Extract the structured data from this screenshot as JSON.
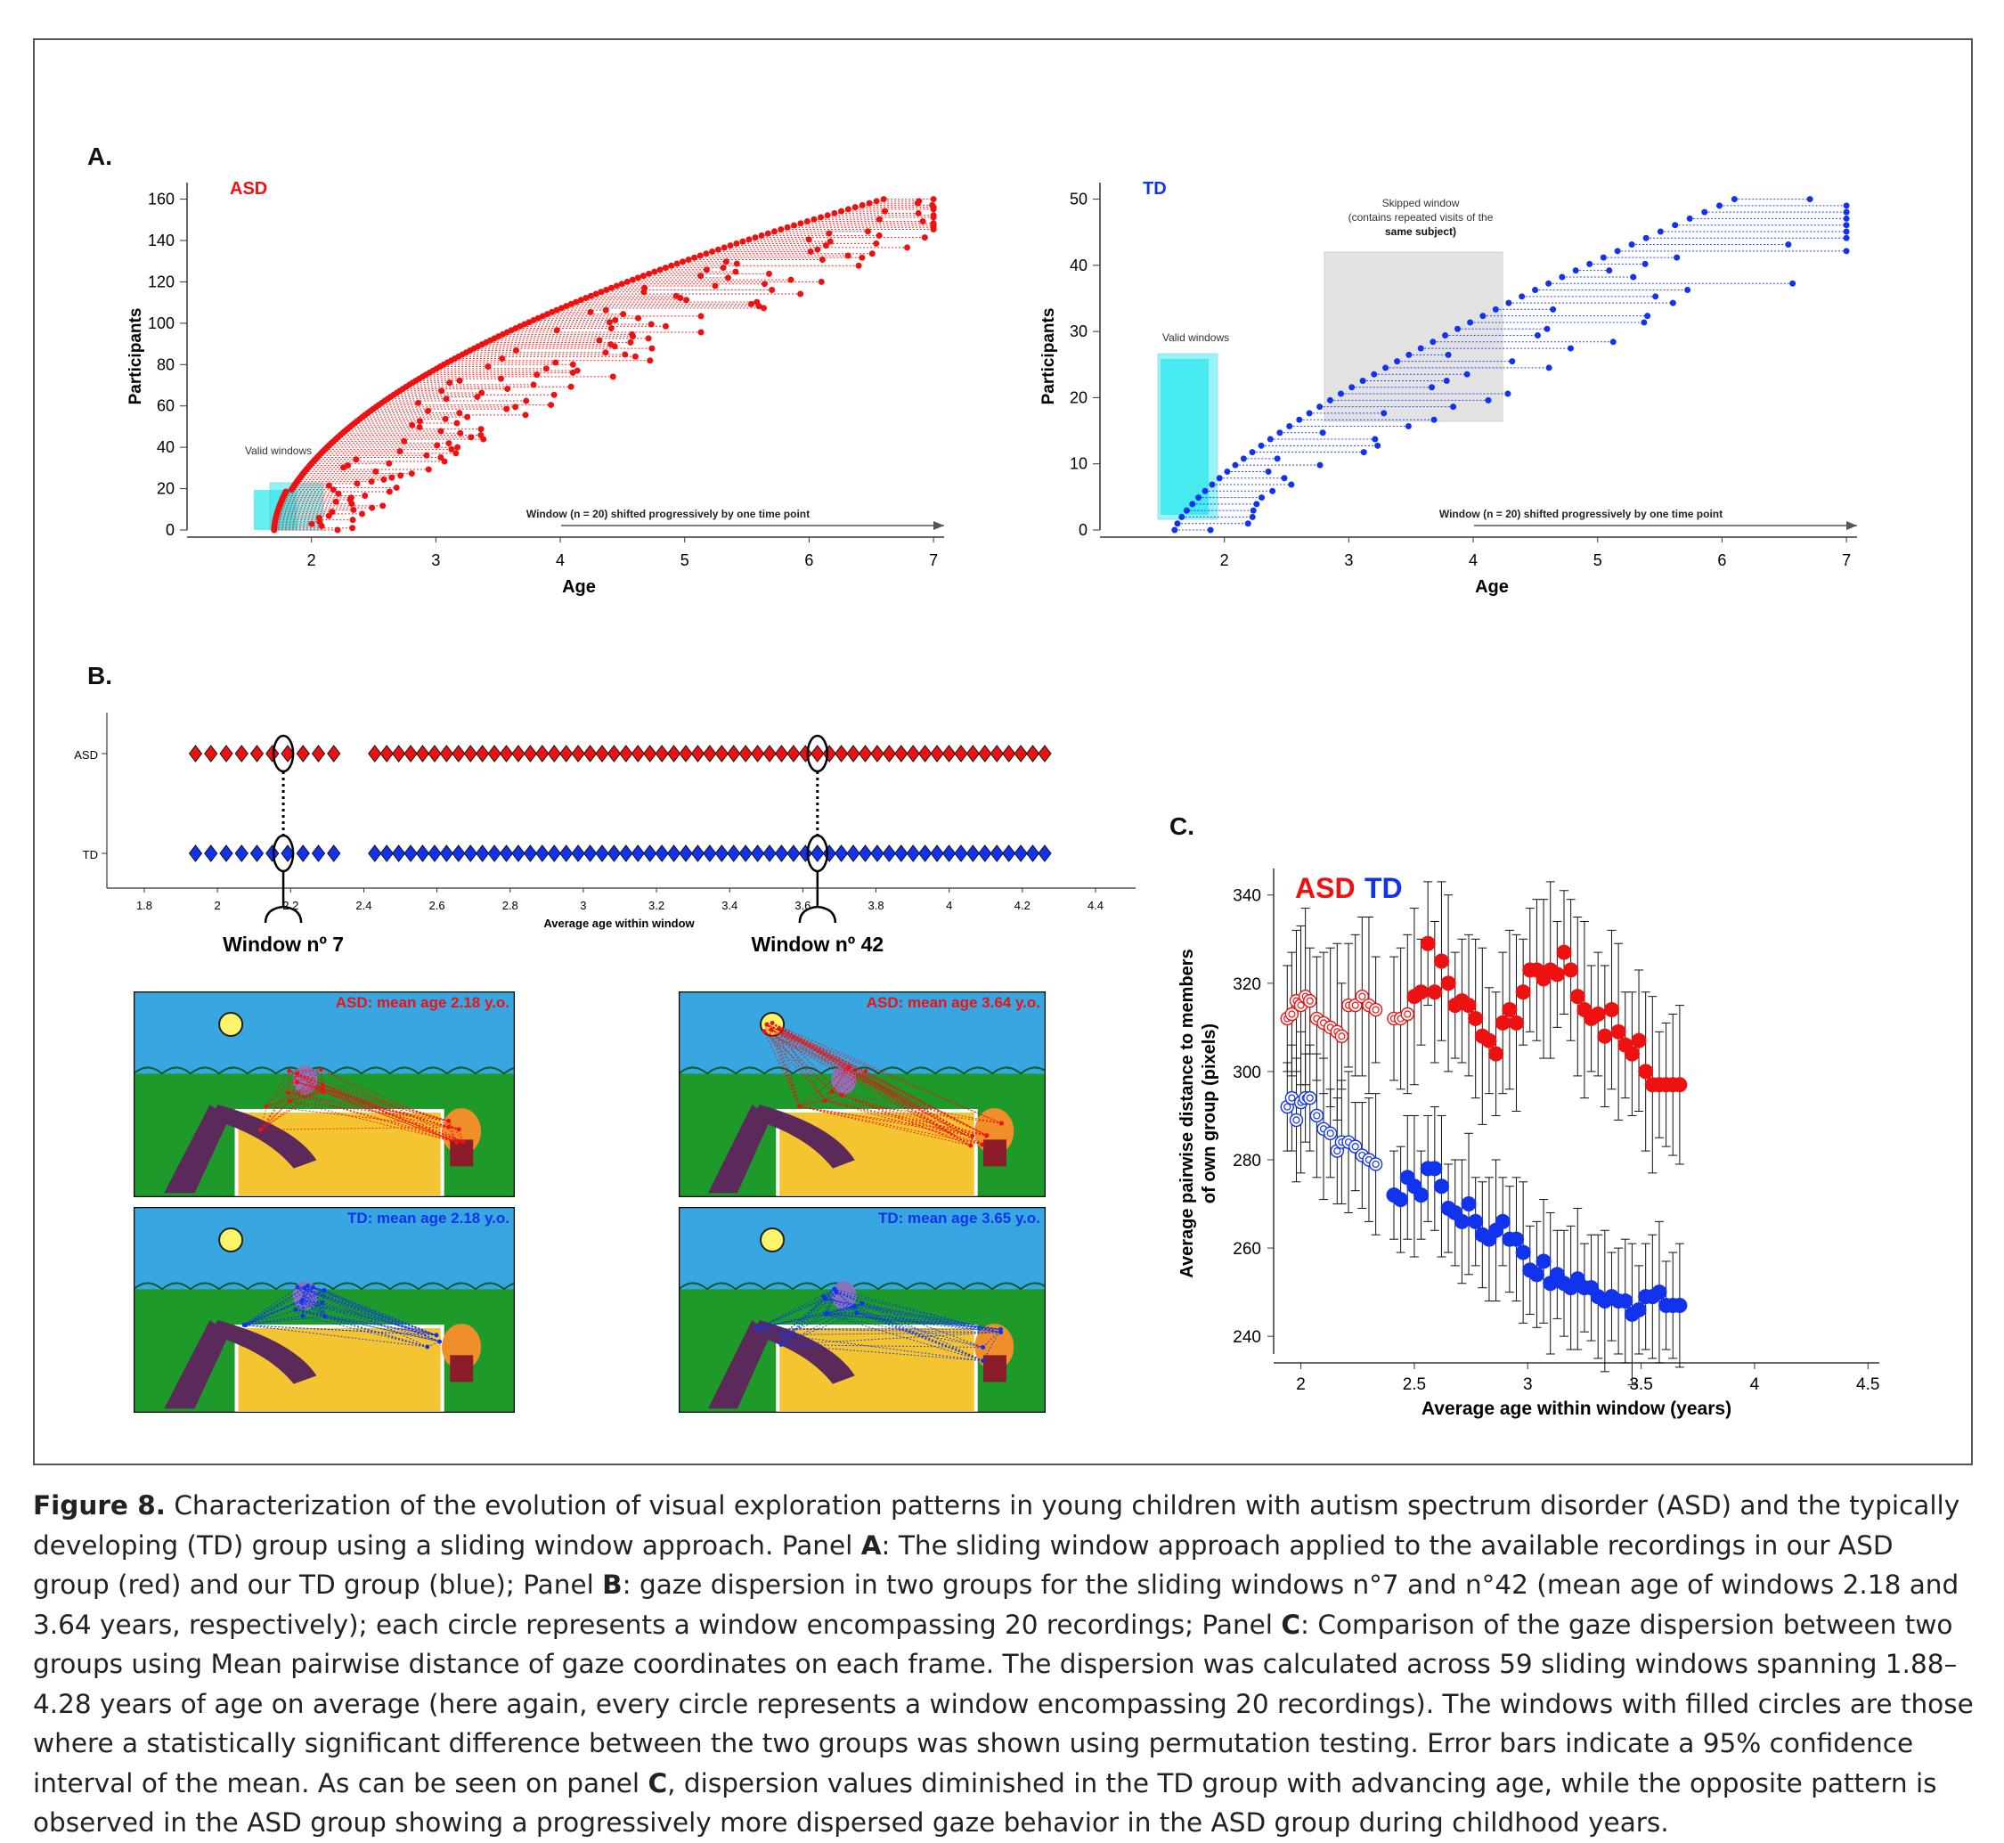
{
  "panel_labels": {
    "a": "A.",
    "b": "B.",
    "c": "C."
  },
  "panel_a": {
    "asd": {
      "group_label": "ASD",
      "valid_windows_label": "Valid windows",
      "arrow_label": "Window (n = 20) shifted progressively by one time point",
      "xlabel": "Age",
      "ylabel": "Participants",
      "yticks": [
        "0",
        "20",
        "40",
        "60",
        "80",
        "100",
        "120",
        "140",
        "160"
      ],
      "xticks": [
        "2",
        "3",
        "4",
        "5",
        "6",
        "7"
      ]
    },
    "td": {
      "group_label": "TD",
      "valid_windows_label": "Valid windows",
      "skipped_label_1": "Skipped window",
      "skipped_label_2": "(contains repeated visits of the",
      "skipped_label_3": "same subject)",
      "arrow_label": "Window (n = 20) shifted progressively by one time point",
      "xlabel": "Age",
      "ylabel": "Participants",
      "yticks": [
        "0",
        "10",
        "20",
        "30",
        "40",
        "50"
      ],
      "xticks": [
        "2",
        "3",
        "4",
        "5",
        "6",
        "7"
      ]
    }
  },
  "panel_b": {
    "row_labels": [
      "ASD",
      "TD"
    ],
    "xticks": [
      "1.8",
      "2",
      "2.2",
      "2.4",
      "2.6",
      "2.8",
      "3",
      "3.2",
      "3.4",
      "3.6",
      "3.8",
      "4",
      "4.2",
      "4.4"
    ],
    "xlabel": "Average age within window",
    "window_labels": [
      "Window nº 7",
      "Window nº 42"
    ],
    "image_captions": {
      "asd_7": "ASD: mean age 2.18 y.o.",
      "td_7": "TD: mean age 2.18 y.o.",
      "asd_42": "ASD: mean age 3.64 y.o.",
      "td_42": "TD: mean age 3.65 y.o."
    },
    "colors": {
      "asd": "#ee1111",
      "td": "#1133ee"
    }
  },
  "chart_data": {
    "type": "scatter",
    "title": "",
    "legend": [
      "ASD",
      "TD"
    ],
    "xlabel": "Average age within window (years)",
    "ylabel_1": "Average pairwise distance to members",
    "ylabel_2": "of own group (pixels)",
    "xlim": [
      1.88,
      4.55
    ],
    "ylim": [
      236,
      346
    ],
    "xticks": [
      "2",
      "2.5",
      "3",
      "3.5",
      "4",
      "4.5"
    ],
    "yticks": [
      "240",
      "260",
      "280",
      "300",
      "320",
      "340"
    ],
    "x": [
      1.94,
      1.96,
      1.98,
      2.0,
      2.02,
      2.04,
      2.07,
      2.1,
      2.13,
      2.16,
      2.18,
      2.21,
      2.24,
      2.27,
      2.3,
      2.33,
      2.41,
      2.44,
      2.47,
      2.5,
      2.53,
      2.56,
      2.59,
      2.62,
      2.65,
      2.68,
      2.71,
      2.74,
      2.77,
      2.8,
      2.83,
      2.86,
      2.89,
      2.92,
      2.95,
      2.98,
      3.01,
      3.04,
      3.07,
      3.1,
      3.13,
      3.16,
      3.19,
      3.22,
      3.25,
      3.28,
      3.31,
      3.34,
      3.37,
      3.4,
      3.43,
      3.46,
      3.49,
      3.52,
      3.55,
      3.58,
      3.61,
      3.64,
      3.67
    ],
    "series": [
      {
        "name": "ASD",
        "color": "#ee1111",
        "values": [
          312,
          313,
          316,
          315,
          317,
          316,
          312,
          311,
          310,
          309,
          308,
          315,
          315,
          317,
          315,
          314,
          312,
          312,
          313,
          317,
          318,
          329,
          318,
          325,
          320,
          315,
          316,
          315,
          312,
          308,
          307,
          304,
          311,
          314,
          311,
          318,
          323,
          323,
          321,
          323,
          322,
          327,
          323,
          317,
          314,
          312,
          313,
          308,
          314,
          309,
          306,
          304,
          307,
          300,
          297,
          297,
          297,
          297,
          297
        ],
        "filled": [
          false,
          false,
          false,
          false,
          false,
          false,
          false,
          false,
          false,
          false,
          false,
          false,
          false,
          false,
          false,
          false,
          false,
          false,
          false,
          true,
          true,
          true,
          true,
          true,
          true,
          true,
          true,
          true,
          true,
          true,
          true,
          true,
          true,
          true,
          true,
          true,
          true,
          true,
          true,
          true,
          true,
          true,
          true,
          true,
          true,
          true,
          true,
          true,
          true,
          true,
          true,
          true,
          true,
          true,
          true,
          true,
          true,
          true,
          true
        ]
      },
      {
        "name": "TD",
        "color": "#1133ee",
        "values": [
          292,
          294,
          289,
          293,
          294,
          294,
          290,
          287,
          286,
          282,
          284,
          284,
          283,
          281,
          280,
          279,
          272,
          271,
          276,
          274,
          272,
          278,
          278,
          274,
          269,
          268,
          266,
          270,
          266,
          263,
          262,
          264,
          266,
          262,
          262,
          259,
          255,
          254,
          257,
          252,
          254,
          252,
          251,
          253,
          251,
          251,
          249,
          248,
          249,
          248,
          248,
          245,
          246,
          249,
          249,
          250,
          247,
          247,
          247
        ],
        "filled": [
          false,
          false,
          false,
          false,
          false,
          false,
          false,
          false,
          false,
          false,
          false,
          false,
          false,
          false,
          false,
          false,
          true,
          true,
          true,
          true,
          true,
          true,
          true,
          true,
          true,
          true,
          true,
          true,
          true,
          true,
          true,
          true,
          true,
          true,
          true,
          true,
          true,
          true,
          true,
          true,
          true,
          true,
          true,
          true,
          true,
          true,
          true,
          true,
          true,
          true,
          true,
          true,
          true,
          true,
          true,
          true,
          true,
          true,
          true
        ]
      }
    ]
  },
  "caption": {
    "figure_label": "Figure 8.",
    "s1": " Characterization of the evolution of visual exploration patterns in young children with autism spectrum disorder (ASD) and the typically developing (TD) group using a sliding window approach. Panel ",
    "a": "A",
    "s2": ": The sliding window approach applied to the available recordings in our ASD group (red) and our TD group (blue); Panel ",
    "b": "B",
    "s3": ": gaze dispersion in two groups for the sliding windows n°7 and n°42 (mean age of windows 2.18 and 3.64 years, respectively); each circle represents a window encompassing 20 recordings; Panel ",
    "c": "C",
    "s4": ": Comparison of the gaze dispersion between two groups using Mean pairwise distance of gaze coordinates on each frame. The dispersion was calculated across 59 sliding windows spanning 1.88–4.28 years of age on average (here again, every circle represents a window encompassing 20 recordings). The windows with filled circles are those where a statistically significant difference between the two groups was shown using permutation testing. Error bars indicate a 95% confidence interval of the mean. As can be seen on panel ",
    "c2": "C",
    "s5": ", dispersion values diminished in the TD group with advancing age, while the opposite pattern is observed in the ASD group showing a progressively more dispersed gaze behavior in the ASD group during childhood years."
  }
}
